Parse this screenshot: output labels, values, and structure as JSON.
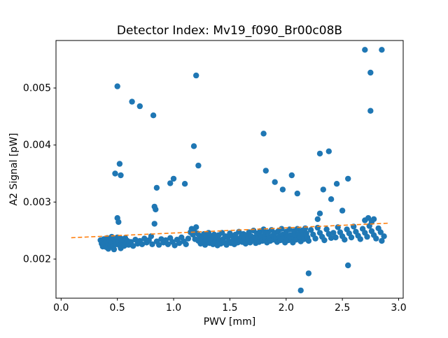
{
  "chart_data": {
    "type": "scatter",
    "title": "Detector Index: Mv19_f090_Br00c08B",
    "xlabel": "PWV [mm]",
    "ylabel": "A2 Signal [pW]",
    "xlim": [
      -0.0455,
      3.0405
    ],
    "ylim": [
      0.001314,
      0.005833
    ],
    "xticks": [
      0.0,
      0.5,
      1.0,
      1.5,
      2.0,
      2.5,
      3.0
    ],
    "xtick_labels": [
      "0.0",
      "0.5",
      "1.0",
      "1.5",
      "2.0",
      "2.5",
      "3.0"
    ],
    "yticks": [
      0.002,
      0.003,
      0.004,
      0.005
    ],
    "ytick_labels": [
      "0.002",
      "0.003",
      "0.004",
      "0.005"
    ],
    "grid": false,
    "legend": "none",
    "marker_color": "#1f77b4",
    "marker_radius": 4.2,
    "spine_color": "#000000",
    "trend_line": {
      "color": "#ff7f0e",
      "style": "dashed",
      "x": [
        0.09,
        2.92
      ],
      "y": [
        0.002375,
        0.00263
      ]
    },
    "points": [
      [
        0.35,
        0.00233
      ],
      [
        0.36,
        0.00227
      ],
      [
        0.37,
        0.00231
      ],
      [
        0.37,
        0.00222
      ],
      [
        0.38,
        0.00235
      ],
      [
        0.39,
        0.00228
      ],
      [
        0.4,
        0.00232
      ],
      [
        0.4,
        0.00221
      ],
      [
        0.41,
        0.00237
      ],
      [
        0.42,
        0.00226
      ],
      [
        0.42,
        0.00218
      ],
      [
        0.43,
        0.00233
      ],
      [
        0.44,
        0.00224
      ],
      [
        0.45,
        0.00239
      ],
      [
        0.45,
        0.00229
      ],
      [
        0.46,
        0.00222
      ],
      [
        0.47,
        0.00235
      ],
      [
        0.47,
        0.00217
      ],
      [
        0.48,
        0.0023
      ],
      [
        0.49,
        0.00226
      ],
      [
        0.5,
        0.00238
      ],
      [
        0.5,
        0.00272
      ],
      [
        0.51,
        0.00265
      ],
      [
        0.51,
        0.00231
      ],
      [
        0.52,
        0.00224
      ],
      [
        0.53,
        0.00236
      ],
      [
        0.53,
        0.00219
      ],
      [
        0.54,
        0.00229
      ],
      [
        0.55,
        0.00233
      ],
      [
        0.56,
        0.00223
      ],
      [
        0.57,
        0.00237
      ],
      [
        0.58,
        0.00228
      ],
      [
        0.59,
        0.00232
      ],
      [
        0.6,
        0.00225
      ],
      [
        0.62,
        0.0023
      ],
      [
        0.64,
        0.00223
      ],
      [
        0.66,
        0.00234
      ],
      [
        0.68,
        0.00227
      ],
      [
        0.7,
        0.00232
      ],
      [
        0.72,
        0.00226
      ],
      [
        0.74,
        0.00236
      ],
      [
        0.76,
        0.00229
      ],
      [
        0.78,
        0.00233
      ],
      [
        0.8,
        0.0024
      ],
      [
        0.81,
        0.00226
      ],
      [
        0.83,
        0.00262
      ],
      [
        0.83,
        0.00292
      ],
      [
        0.84,
        0.00287
      ],
      [
        0.85,
        0.00231
      ],
      [
        0.87,
        0.00225
      ],
      [
        0.89,
        0.00235
      ],
      [
        0.91,
        0.00229
      ],
      [
        0.93,
        0.00233
      ],
      [
        0.95,
        0.00226
      ],
      [
        0.97,
        0.00237
      ],
      [
        0.99,
        0.0023
      ],
      [
        1.01,
        0.00224
      ],
      [
        1.03,
        0.00234
      ],
      [
        1.05,
        0.00228
      ],
      [
        1.07,
        0.00238
      ],
      [
        1.09,
        0.00231
      ],
      [
        1.11,
        0.00226
      ],
      [
        1.13,
        0.00236
      ],
      [
        1.15,
        0.00247
      ],
      [
        1.16,
        0.00253
      ],
      [
        1.17,
        0.00243
      ],
      [
        1.18,
        0.0025
      ],
      [
        1.19,
        0.00235
      ],
      [
        1.2,
        0.00256
      ],
      [
        1.21,
        0.00245
      ],
      [
        1.22,
        0.00232
      ],
      [
        1.23,
        0.00241
      ],
      [
        1.24,
        0.00227
      ],
      [
        1.25,
        0.00236
      ],
      [
        1.26,
        0.0023
      ],
      [
        1.27,
        0.00244
      ],
      [
        1.28,
        0.00225
      ],
      [
        1.29,
        0.00238
      ],
      [
        1.3,
        0.00232
      ],
      [
        1.31,
        0.00246
      ],
      [
        1.32,
        0.00228
      ],
      [
        1.33,
        0.0024
      ],
      [
        1.34,
        0.00234
      ],
      [
        1.35,
        0.00226
      ],
      [
        1.36,
        0.00243
      ],
      [
        1.37,
        0.00231
      ],
      [
        1.38,
        0.00237
      ],
      [
        1.39,
        0.00224
      ],
      [
        1.4,
        0.00242
      ],
      [
        1.41,
        0.00233
      ],
      [
        1.42,
        0.00227
      ],
      [
        1.43,
        0.00246
      ],
      [
        1.44,
        0.00235
      ],
      [
        1.45,
        0.00229
      ],
      [
        1.46,
        0.0024
      ],
      [
        1.47,
        0.00225
      ],
      [
        1.48,
        0.00238
      ],
      [
        1.49,
        0.00231
      ],
      [
        1.5,
        0.00245
      ],
      [
        1.51,
        0.00228
      ],
      [
        1.52,
        0.00241
      ],
      [
        1.53,
        0.00234
      ],
      [
        1.54,
        0.00226
      ],
      [
        1.55,
        0.00243
      ],
      [
        1.56,
        0.00236
      ],
      [
        1.57,
        0.00229
      ],
      [
        1.58,
        0.00248
      ],
      [
        1.59,
        0.00232
      ],
      [
        1.6,
        0.00239
      ],
      [
        1.61,
        0.0023
      ],
      [
        1.62,
        0.00244
      ],
      [
        1.63,
        0.00236
      ],
      [
        1.64,
        0.00227
      ],
      [
        1.65,
        0.00242
      ],
      [
        1.66,
        0.00233
      ],
      [
        1.67,
        0.00247
      ],
      [
        1.68,
        0.00229
      ],
      [
        1.69,
        0.0024
      ],
      [
        1.7,
        0.00234
      ],
      [
        1.71,
        0.0025
      ],
      [
        1.72,
        0.00238
      ],
      [
        1.73,
        0.00228
      ],
      [
        1.74,
        0.00245
      ],
      [
        1.75,
        0.00236
      ],
      [
        1.76,
        0.0023
      ],
      [
        1.77,
        0.00249
      ],
      [
        1.78,
        0.0024
      ],
      [
        1.79,
        0.00232
      ],
      [
        1.8,
        0.00252
      ],
      [
        1.81,
        0.00243
      ],
      [
        1.82,
        0.00235
      ],
      [
        1.83,
        0.00229
      ],
      [
        1.84,
        0.00247
      ],
      [
        1.85,
        0.00238
      ],
      [
        1.86,
        0.00232
      ],
      [
        1.87,
        0.00251
      ],
      [
        1.88,
        0.00241
      ],
      [
        1.89,
        0.00234
      ],
      [
        1.9,
        0.00246
      ],
      [
        1.91,
        0.00237
      ],
      [
        1.92,
        0.0023
      ],
      [
        1.93,
        0.00249
      ],
      [
        1.94,
        0.0024
      ],
      [
        1.95,
        0.00233
      ],
      [
        1.96,
        0.00253
      ],
      [
        1.97,
        0.00243
      ],
      [
        1.98,
        0.00236
      ],
      [
        1.99,
        0.00229
      ],
      [
        2.0,
        0.00248
      ],
      [
        2.01,
        0.0024
      ],
      [
        2.02,
        0.00233
      ],
      [
        2.03,
        0.00252
      ],
      [
        2.04,
        0.00242
      ],
      [
        2.05,
        0.00235
      ],
      [
        2.06,
        0.00229
      ],
      [
        2.07,
        0.00249
      ],
      [
        2.08,
        0.00241
      ],
      [
        2.09,
        0.00234
      ],
      [
        2.1,
        0.00253
      ],
      [
        2.11,
        0.00244
      ],
      [
        2.12,
        0.00237
      ],
      [
        2.13,
        0.00231
      ],
      [
        2.14,
        0.0025
      ],
      [
        2.15,
        0.00242
      ],
      [
        2.16,
        0.00235
      ],
      [
        2.17,
        0.00254
      ],
      [
        2.18,
        0.00245
      ],
      [
        2.19,
        0.00238
      ],
      [
        2.2,
        0.00232
      ],
      [
        2.22,
        0.00251
      ],
      [
        2.24,
        0.00243
      ],
      [
        2.26,
        0.00236
      ],
      [
        2.28,
        0.00255
      ],
      [
        2.28,
        0.0027
      ],
      [
        2.3,
        0.00246
      ],
      [
        2.3,
        0.0028
      ],
      [
        2.32,
        0.00239
      ],
      [
        2.34,
        0.00233
      ],
      [
        2.36,
        0.00252
      ],
      [
        2.38,
        0.00244
      ],
      [
        2.4,
        0.00237
      ],
      [
        2.4,
        0.00305
      ],
      [
        2.42,
        0.00246
      ],
      [
        2.44,
        0.00238
      ],
      [
        2.46,
        0.00256
      ],
      [
        2.48,
        0.00247
      ],
      [
        2.5,
        0.0024
      ],
      [
        2.5,
        0.00285
      ],
      [
        2.52,
        0.00234
      ],
      [
        2.54,
        0.00252
      ],
      [
        2.56,
        0.00245
      ],
      [
        2.58,
        0.00238
      ],
      [
        2.6,
        0.00257
      ],
      [
        2.62,
        0.00248
      ],
      [
        2.64,
        0.00241
      ],
      [
        2.66,
        0.00235
      ],
      [
        2.68,
        0.00253
      ],
      [
        2.7,
        0.00246
      ],
      [
        2.7,
        0.00268
      ],
      [
        2.72,
        0.00239
      ],
      [
        2.73,
        0.00272
      ],
      [
        2.74,
        0.00258
      ],
      [
        2.76,
        0.00249
      ],
      [
        2.76,
        0.00265
      ],
      [
        2.78,
        0.00242
      ],
      [
        2.78,
        0.0027
      ],
      [
        2.8,
        0.00236
      ],
      [
        2.82,
        0.00254
      ],
      [
        2.84,
        0.00247
      ],
      [
        2.85,
        0.00232
      ],
      [
        2.87,
        0.0024
      ],
      [
        0.48,
        0.0035
      ],
      [
        0.5,
        0.00503
      ],
      [
        0.52,
        0.00367
      ],
      [
        0.53,
        0.00347
      ],
      [
        0.63,
        0.00476
      ],
      [
        0.7,
        0.00468
      ],
      [
        0.82,
        0.00452
      ],
      [
        0.85,
        0.00325
      ],
      [
        0.97,
        0.00333
      ],
      [
        1.0,
        0.00341
      ],
      [
        1.1,
        0.00332
      ],
      [
        1.18,
        0.00398
      ],
      [
        1.2,
        0.00522
      ],
      [
        1.22,
        0.00364
      ],
      [
        1.8,
        0.0042
      ],
      [
        1.82,
        0.00355
      ],
      [
        1.9,
        0.00335
      ],
      [
        1.97,
        0.00322
      ],
      [
        2.05,
        0.00347
      ],
      [
        2.1,
        0.00315
      ],
      [
        2.13,
        0.00145
      ],
      [
        2.2,
        0.00175
      ],
      [
        2.3,
        0.00385
      ],
      [
        2.33,
        0.00322
      ],
      [
        2.38,
        0.00389
      ],
      [
        2.45,
        0.00332
      ],
      [
        2.55,
        0.00341
      ],
      [
        2.55,
        0.00189
      ],
      [
        2.7,
        0.00567
      ],
      [
        2.75,
        0.00527
      ],
      [
        2.75,
        0.0046
      ],
      [
        2.85,
        0.00567
      ]
    ]
  }
}
